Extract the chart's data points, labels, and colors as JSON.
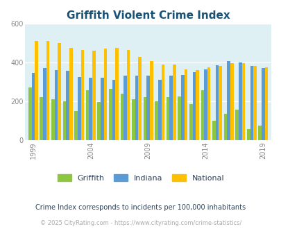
{
  "title": "Griffith Violent Crime Index",
  "subtitle": "Crime Index corresponds to incidents per 100,000 inhabitants",
  "footer": "© 2025 CityRating.com - https://www.cityrating.com/crime-statistics/",
  "years": [
    1999,
    2000,
    2001,
    2002,
    2003,
    2004,
    2005,
    2006,
    2007,
    2008,
    2009,
    2010,
    2011,
    2012,
    2013,
    2014,
    2015,
    2016,
    2017,
    2018,
    2019
  ],
  "griffith": [
    270,
    220,
    210,
    200,
    150,
    255,
    195,
    265,
    240,
    210,
    220,
    200,
    220,
    225,
    185,
    255,
    100,
    135,
    155,
    55,
    75
  ],
  "indiana": [
    345,
    370,
    360,
    355,
    325,
    320,
    320,
    310,
    330,
    330,
    330,
    310,
    330,
    335,
    350,
    365,
    385,
    405,
    400,
    380,
    370
  ],
  "national": [
    510,
    510,
    500,
    475,
    465,
    460,
    470,
    475,
    465,
    430,
    405,
    390,
    390,
    365,
    360,
    375,
    380,
    395,
    395,
    380,
    375
  ],
  "colors": {
    "griffith": "#8dc63f",
    "indiana": "#5b9bd5",
    "national": "#ffc000",
    "background": "#dff0f5",
    "title": "#1a5276",
    "subtitle": "#2e4057",
    "footer": "#aaaaaa"
  },
  "ylim": [
    0,
    600
  ],
  "yticks": [
    0,
    200,
    400,
    600
  ],
  "xtick_years": [
    1999,
    2004,
    2009,
    2014,
    2019
  ],
  "legend_labels": [
    "Griffith",
    "Indiana",
    "National"
  ],
  "bar_width": 0.28,
  "figsize": [
    4.06,
    3.3
  ],
  "dpi": 100
}
